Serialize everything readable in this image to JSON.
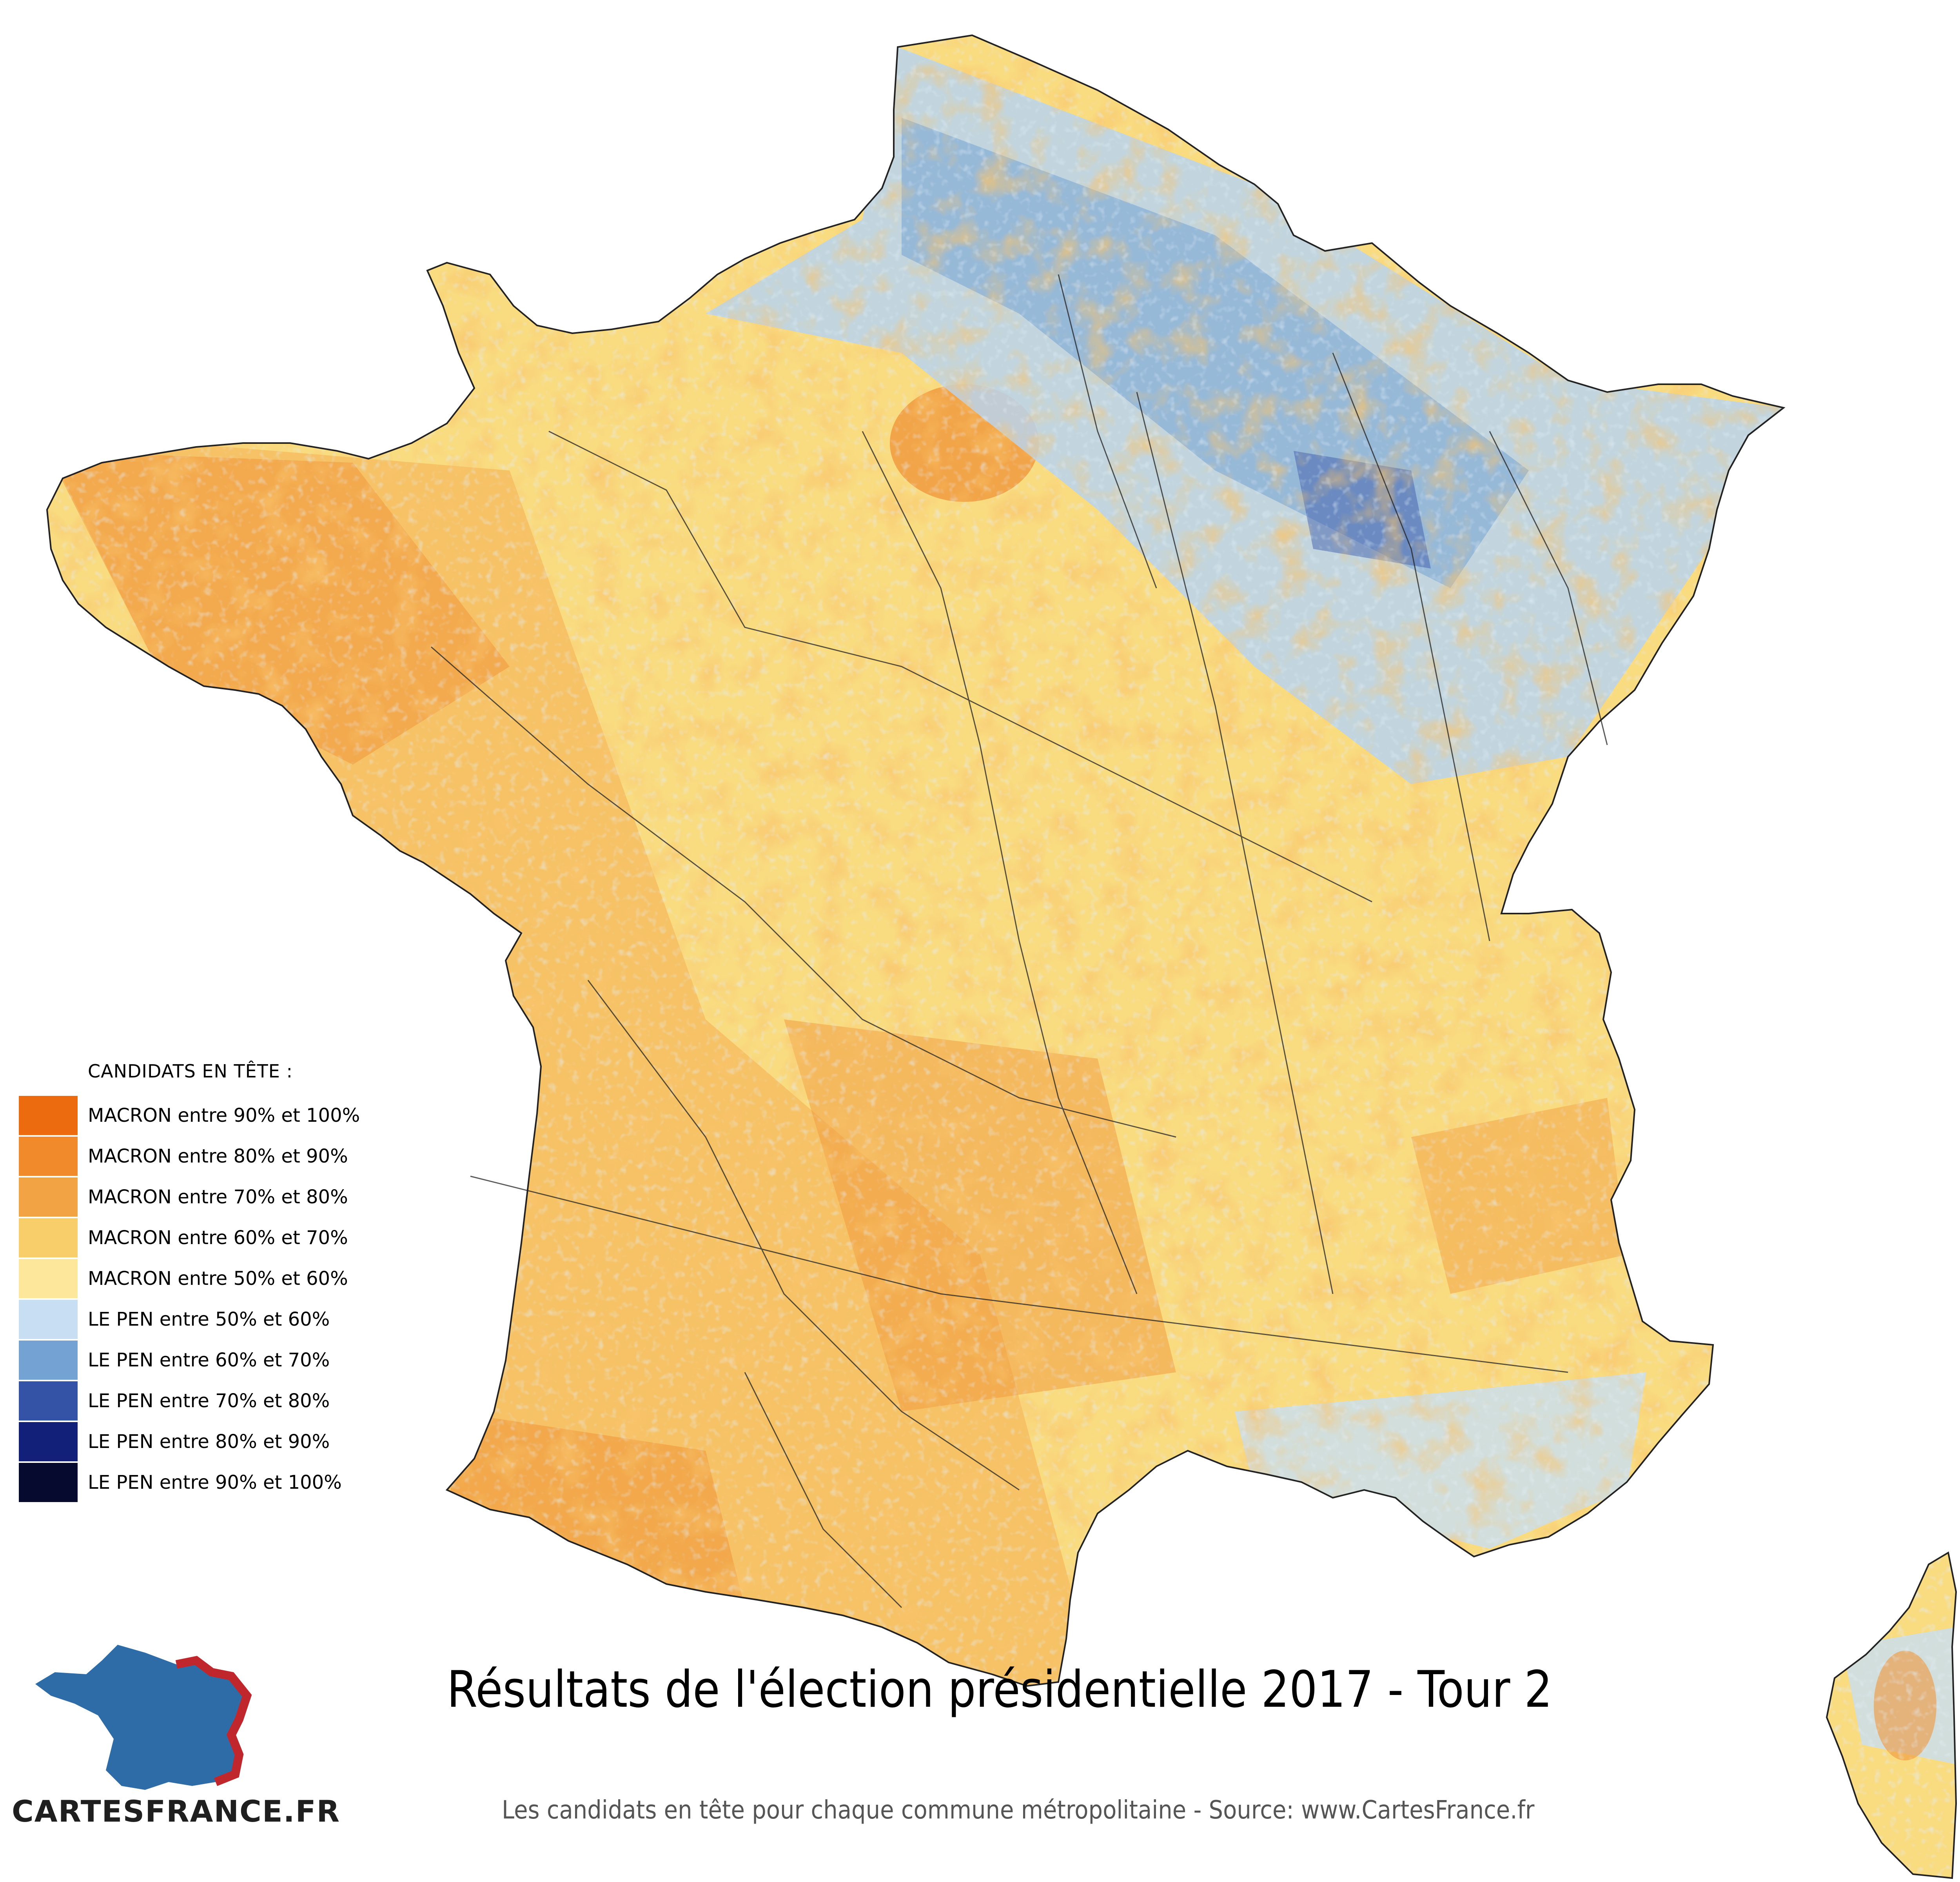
{
  "title": "Résultats de l'élection présidentielle 2017 - Tour 2",
  "subtitle": "Les candidats en tête pour chaque commune métropolitaine - Source: www.CartesFrance.fr",
  "legend": {
    "title": "CANDIDATS EN TÊTE :",
    "items": [
      {
        "label": "MACRON entre 90% et 100%",
        "color": "#EC6B0E"
      },
      {
        "label": "MACRON entre 80% et 90%",
        "color": "#F08A2A"
      },
      {
        "label": "MACRON entre 70% et 80%",
        "color": "#F2A444"
      },
      {
        "label": "MACRON entre 60% et 70%",
        "color": "#F7CE6A"
      },
      {
        "label": "MACRON entre 50% et 60%",
        "color": "#FCE79A"
      },
      {
        "label": "LE PEN entre 50% et 60%",
        "color": "#C8DEF2"
      },
      {
        "label": "LE PEN entre 60% et 70%",
        "color": "#74A3D3"
      },
      {
        "label": "LE PEN entre 70% et 80%",
        "color": "#3453A6"
      },
      {
        "label": "LE PEN entre 80% et 90%",
        "color": "#122079"
      },
      {
        "label": "LE PEN entre 90% et 100%",
        "color": "#050A2E"
      }
    ]
  },
  "logo": {
    "text": "CARTESFRANCE.FR",
    "icon": "france-map-logo-icon",
    "colors": {
      "fill": "#2E6CA8",
      "border": "#C0272D"
    }
  },
  "map": {
    "regions": [
      "france-mainland",
      "corsica"
    ]
  }
}
